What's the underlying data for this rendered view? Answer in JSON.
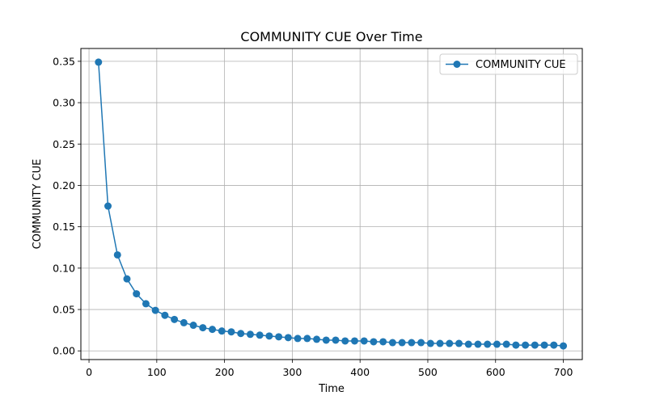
{
  "chart_data": {
    "type": "line",
    "title": "COMMUNITY CUE Over Time",
    "xlabel": "Time",
    "ylabel": "COMMUNITY CUE",
    "xlim": [
      -12,
      728
    ],
    "ylim": [
      -0.0105,
      0.3655
    ],
    "xticks": [
      0,
      100,
      200,
      300,
      400,
      500,
      600,
      700
    ],
    "yticks": [
      0.0,
      0.05,
      0.1,
      0.15,
      0.2,
      0.25,
      0.3,
      0.35
    ],
    "ytick_labels": [
      "0.00",
      "0.05",
      "0.10",
      "0.15",
      "0.20",
      "0.25",
      "0.30",
      "0.35"
    ],
    "grid": true,
    "legend_position": "top-right",
    "marker": "circle",
    "series": [
      {
        "name": "COMMUNITY CUE",
        "color": "#1f77b4",
        "x": [
          14,
          28,
          42,
          56,
          70,
          84,
          98,
          112,
          126,
          140,
          154,
          168,
          182,
          196,
          210,
          224,
          238,
          252,
          266,
          280,
          294,
          308,
          322,
          336,
          350,
          364,
          378,
          392,
          406,
          420,
          434,
          448,
          462,
          476,
          490,
          504,
          518,
          532,
          546,
          560,
          574,
          588,
          602,
          616,
          630,
          644,
          658,
          672,
          686,
          700
        ],
        "y": [
          0.349,
          0.175,
          0.116,
          0.087,
          0.069,
          0.057,
          0.049,
          0.043,
          0.038,
          0.034,
          0.031,
          0.028,
          0.026,
          0.024,
          0.023,
          0.021,
          0.02,
          0.019,
          0.018,
          0.017,
          0.016,
          0.015,
          0.015,
          0.014,
          0.013,
          0.013,
          0.012,
          0.012,
          0.012,
          0.011,
          0.011,
          0.01,
          0.01,
          0.01,
          0.01,
          0.009,
          0.009,
          0.009,
          0.009,
          0.008,
          0.008,
          0.008,
          0.008,
          0.008,
          0.007,
          0.007,
          0.007,
          0.007,
          0.007,
          0.006
        ]
      }
    ]
  }
}
